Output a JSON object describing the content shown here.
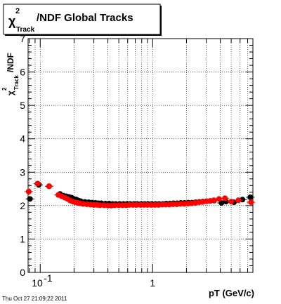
{
  "title": {
    "chi": "χ",
    "sup": "2",
    "sub": "Track",
    "rest": "/NDF  Global Tracks"
  },
  "ylabel": {
    "chi": "χ",
    "sup": "2",
    "sub": "Track",
    "rest": "/NDF"
  },
  "xlabel": "pT (GeV/c)",
  "footer": "Thu Oct 27 21:09:22 2011",
  "chart_data": {
    "type": "scatter",
    "xscale": "log",
    "xlim": [
      0.078,
      7.8
    ],
    "ylim": [
      0,
      7
    ],
    "grid": true,
    "xtick_labels": [
      {
        "value": 0.1,
        "base": "10",
        "exp": "-1"
      },
      {
        "value": 1,
        "base": "1",
        "exp": ""
      }
    ],
    "ytick_labels": [
      "0",
      "1",
      "2",
      "3",
      "4",
      "5",
      "6",
      "7"
    ],
    "series": [
      {
        "color": "#000000",
        "x": [
          0.081,
          0.097,
          0.12,
          0.15,
          0.16,
          0.17,
          0.18,
          0.19,
          0.2,
          0.21,
          0.22,
          0.23,
          0.25,
          0.27,
          0.29,
          0.31,
          0.33,
          0.35,
          0.38,
          0.41,
          0.44,
          0.47,
          0.51,
          0.55,
          0.59,
          0.63,
          0.68,
          0.73,
          0.79,
          0.85,
          0.91,
          0.98,
          1.06,
          1.14,
          1.23,
          1.32,
          1.42,
          1.53,
          1.65,
          1.78,
          1.92,
          2.07,
          2.23,
          2.41,
          2.6,
          2.8,
          3.02,
          3.26,
          3.52,
          4.1,
          4.5,
          5.3,
          6.3,
          7.4
        ],
        "y": [
          2.2,
          2.62,
          2.58,
          2.35,
          2.3,
          2.28,
          2.26,
          2.24,
          2.2,
          2.18,
          2.15,
          2.13,
          2.11,
          2.1,
          2.09,
          2.08,
          2.07,
          2.07,
          2.06,
          2.06,
          2.05,
          2.05,
          2.05,
          2.05,
          2.05,
          2.05,
          2.05,
          2.05,
          2.05,
          2.05,
          2.05,
          2.05,
          2.05,
          2.05,
          2.05,
          2.06,
          2.06,
          2.07,
          2.07,
          2.08,
          2.08,
          2.09,
          2.09,
          2.1,
          2.11,
          2.12,
          2.13,
          2.14,
          2.15,
          2.08,
          2.12,
          2.1,
          2.18,
          2.25
        ]
      },
      {
        "color": "#ff0000",
        "x": [
          0.079,
          0.095,
          0.12,
          0.145,
          0.155,
          0.165,
          0.175,
          0.185,
          0.195,
          0.205,
          0.215,
          0.225,
          0.24,
          0.26,
          0.28,
          0.3,
          0.32,
          0.34,
          0.37,
          0.4,
          0.43,
          0.46,
          0.5,
          0.54,
          0.58,
          0.62,
          0.67,
          0.72,
          0.78,
          0.84,
          0.9,
          0.97,
          1.05,
          1.13,
          1.22,
          1.31,
          1.41,
          1.52,
          1.64,
          1.77,
          1.91,
          2.06,
          2.22,
          2.4,
          2.59,
          2.79,
          3.01,
          3.25,
          3.51,
          3.9,
          4.4,
          5.0,
          5.8,
          7.5
        ],
        "y": [
          2.42,
          2.66,
          2.58,
          2.32,
          2.28,
          2.24,
          2.2,
          2.15,
          2.12,
          2.1,
          2.08,
          2.07,
          2.05,
          2.04,
          2.03,
          2.02,
          2.02,
          2.01,
          2.01,
          2.0,
          2.0,
          2.01,
          2.01,
          2.01,
          2.01,
          2.02,
          2.02,
          2.02,
          2.02,
          2.02,
          2.02,
          2.02,
          2.02,
          2.02,
          2.03,
          2.03,
          2.03,
          2.04,
          2.04,
          2.05,
          2.05,
          2.06,
          2.07,
          2.08,
          2.1,
          2.11,
          2.13,
          2.14,
          2.16,
          2.2,
          2.22,
          2.12,
          2.16,
          2.1
        ]
      }
    ]
  }
}
